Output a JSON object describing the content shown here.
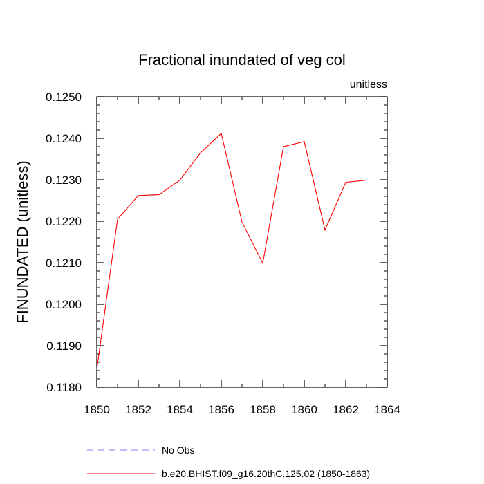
{
  "chart_data": {
    "type": "line",
    "title": "Fractional inundated of veg col",
    "units_label": "unitless",
    "xlabel": "",
    "ylabel": "FINUNDATED  (unitless)",
    "xlim": [
      1850,
      1864
    ],
    "ylim": [
      0.118,
      0.125
    ],
    "x_ticks": [
      1850,
      1852,
      1854,
      1856,
      1858,
      1860,
      1862,
      1864
    ],
    "x_tick_labels": [
      "1850",
      "1852",
      "1854",
      "1856",
      "1858",
      "1860",
      "1862",
      "1864"
    ],
    "y_ticks": [
      0.118,
      0.119,
      0.12,
      0.121,
      0.122,
      0.123,
      0.124,
      0.125
    ],
    "y_tick_labels": [
      "0.1180",
      "0.1190",
      "0.1200",
      "0.1210",
      "0.1220",
      "0.1230",
      "0.1240",
      "0.1250"
    ],
    "grid": false,
    "series": [
      {
        "name": "b.e20.BHIST.f09_g16.20thC.125.02 (1850-1863)",
        "color": "#ff0000",
        "dash": "solid",
        "x": [
          1850,
          1851,
          1852,
          1853,
          1854,
          1855,
          1856,
          1857,
          1858,
          1859,
          1860,
          1861,
          1862,
          1863
        ],
        "values": [
          0.11843,
          0.12205,
          0.12262,
          0.12264,
          0.12299,
          0.12365,
          0.12412,
          0.12198,
          0.12099,
          0.1238,
          0.12392,
          0.12179,
          0.12294,
          0.12299
        ]
      }
    ],
    "legend": {
      "placement": "bottom",
      "entries": [
        {
          "label": "No Obs",
          "color": "#8080ff",
          "dash": "dashed"
        },
        {
          "label": "b.e20.BHIST.f09_g16.20thC.125.02 (1850-1863)",
          "color": "#ff0000",
          "dash": "solid"
        }
      ]
    }
  }
}
